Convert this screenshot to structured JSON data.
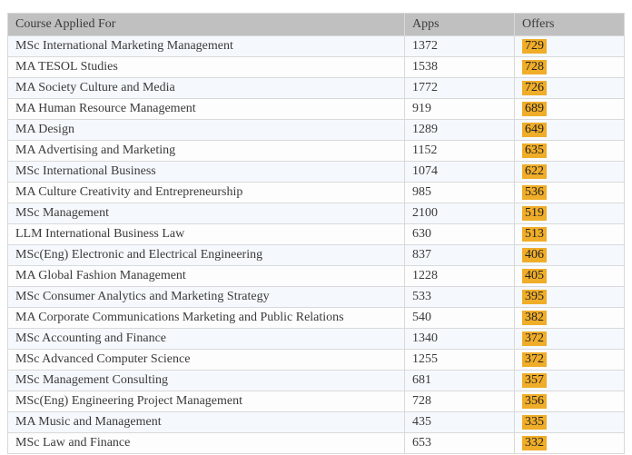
{
  "table": {
    "columns": [
      {
        "key": "course",
        "label": "Course Applied For"
      },
      {
        "key": "apps",
        "label": "Apps"
      },
      {
        "key": "offers",
        "label": "Offers"
      }
    ],
    "rows": [
      {
        "course": "MSc International Marketing Management",
        "apps": "1372",
        "offers": "729"
      },
      {
        "course": "MA TESOL Studies",
        "apps": "1538",
        "offers": "728"
      },
      {
        "course": "MA Society Culture and Media",
        "apps": "1772",
        "offers": "726"
      },
      {
        "course": "MA Human Resource Management",
        "apps": "919",
        "offers": "689"
      },
      {
        "course": "MA Design",
        "apps": "1289",
        "offers": "649"
      },
      {
        "course": "MA Advertising and Marketing",
        "apps": "1152",
        "offers": "635"
      },
      {
        "course": "MSc International Business",
        "apps": "1074",
        "offers": "622"
      },
      {
        "course": "MA Culture Creativity and Entrepreneurship",
        "apps": "985",
        "offers": "536"
      },
      {
        "course": "MSc Management",
        "apps": "2100",
        "offers": "519"
      },
      {
        "course": "LLM International Business Law",
        "apps": "630",
        "offers": "513"
      },
      {
        "course": "MSc(Eng) Electronic and Electrical Engineering",
        "apps": "837",
        "offers": "406"
      },
      {
        "course": "MA Global Fashion Management",
        "apps": "1228",
        "offers": "405"
      },
      {
        "course": "MSc Consumer Analytics and Marketing Strategy",
        "apps": "533",
        "offers": "395"
      },
      {
        "course": "MA Corporate Communications Marketing and Public Relations",
        "apps": "540",
        "offers": "382"
      },
      {
        "course": "MSc Accounting and Finance",
        "apps": "1340",
        "offers": "372"
      },
      {
        "course": "MSc Advanced Computer Science",
        "apps": "1255",
        "offers": "372"
      },
      {
        "course": "MSc Management Consulting",
        "apps": "681",
        "offers": "357"
      },
      {
        "course": "MSc(Eng) Engineering Project Management",
        "apps": "728",
        "offers": "356"
      },
      {
        "course": "MA Music and Management",
        "apps": "435",
        "offers": "335"
      },
      {
        "course": "MSc Law and Finance",
        "apps": "653",
        "offers": "332"
      }
    ],
    "colors": {
      "header_bg": "#c0c0c0",
      "row_alt_bg": "#f5f9fd",
      "row_bg": "#fdfdfd",
      "border": "#d9d9d9",
      "offer_highlight": "#f0ad29",
      "text": "#3a3a3a"
    }
  }
}
